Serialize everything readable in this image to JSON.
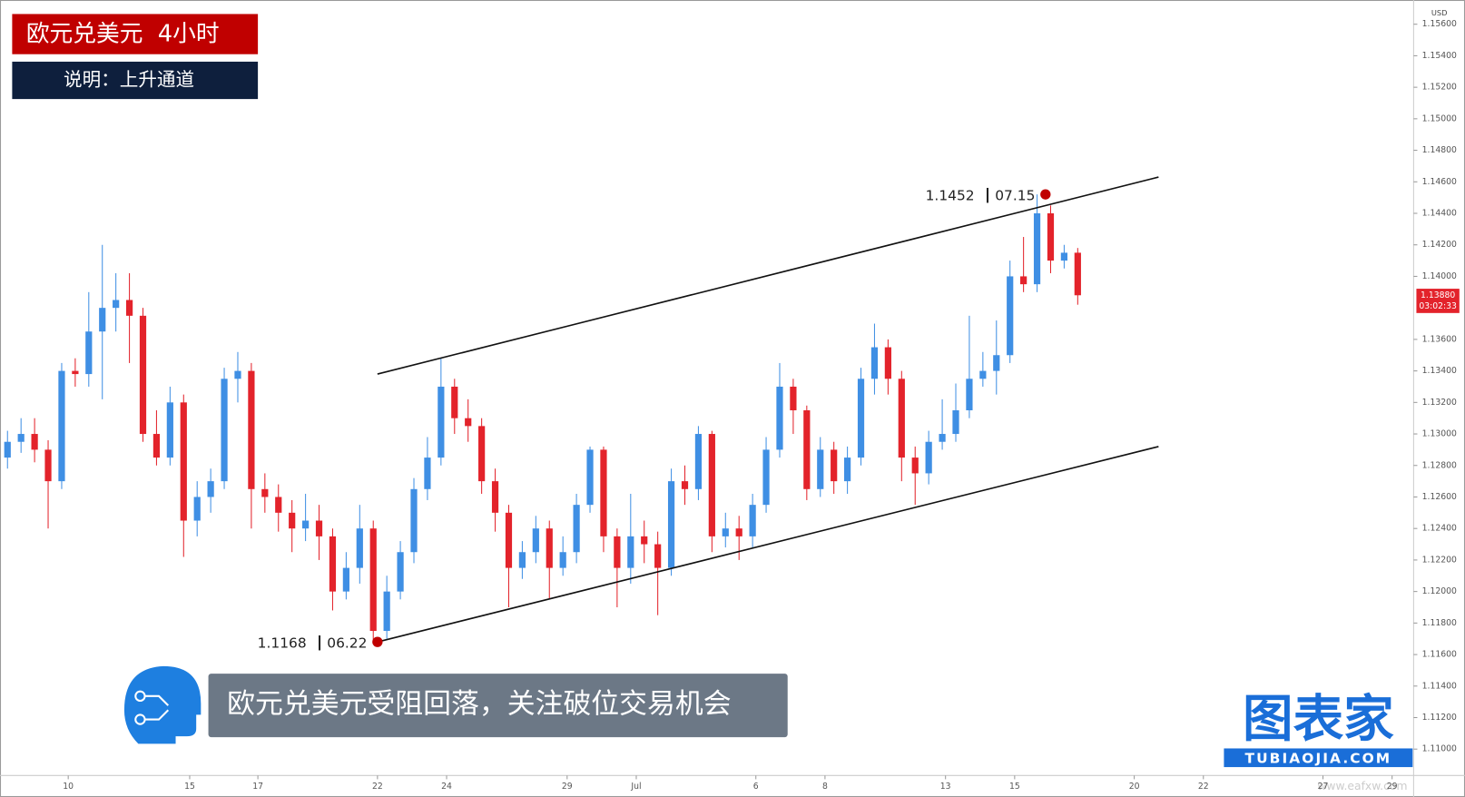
{
  "chart_data": {
    "type": "candlestick",
    "title": "欧元兑美元  4小时",
    "subtitle": "说明：上升通道",
    "caption": "欧元兑美元受阻回落，关注破位交易机会",
    "brand": "图表家",
    "brand_url": "TUBIAOJIA.COM",
    "watermark": "www.eafxw.com",
    "currency": "USD",
    "up_color": "#3f8fe4",
    "down_color": "#e3232b",
    "open": [
      1.1285,
      1.1295,
      1.13,
      1.129,
      1.127,
      1.134,
      1.1338,
      1.1365,
      1.138,
      1.1385,
      1.1375,
      1.13,
      1.1285,
      1.132,
      1.1245,
      1.126,
      1.127,
      1.1335,
      1.134,
      1.1265,
      1.126,
      1.125,
      1.124,
      1.1245,
      1.1235,
      1.12,
      1.1215,
      1.124,
      1.1175,
      1.12,
      1.1225,
      1.1265,
      1.1285,
      1.133,
      1.131,
      1.1305,
      1.127,
      1.125,
      1.1215,
      1.1225,
      1.124,
      1.1215,
      1.1225,
      1.1255,
      1.129,
      1.1235,
      1.1215,
      1.1235,
      1.123,
      1.1215,
      1.127,
      1.1265,
      1.13,
      1.1235,
      1.124,
      1.1235,
      1.1255,
      1.129,
      1.133,
      1.1315,
      1.1265,
      1.129,
      1.127,
      1.1285,
      1.1335,
      1.1355,
      1.1335,
      1.1285,
      1.1275,
      1.1295,
      1.13,
      1.1315,
      1.1335,
      1.134,
      1.135,
      1.14,
      1.1395,
      1.144,
      1.141,
      1.1415
    ],
    "high": [
      1.1302,
      1.131,
      1.131,
      1.1296,
      1.1345,
      1.1348,
      1.139,
      1.142,
      1.1402,
      1.1402,
      1.138,
      1.1315,
      1.133,
      1.1325,
      1.127,
      1.1278,
      1.1342,
      1.1352,
      1.1345,
      1.1275,
      1.1268,
      1.1258,
      1.1262,
      1.1255,
      1.124,
      1.1225,
      1.1255,
      1.1245,
      1.121,
      1.1232,
      1.1272,
      1.1298,
      1.1348,
      1.1335,
      1.1322,
      1.131,
      1.1278,
      1.1255,
      1.1232,
      1.1248,
      1.1245,
      1.1235,
      1.1262,
      1.1292,
      1.1292,
      1.124,
      1.1262,
      1.1245,
      1.1238,
      1.1278,
      1.128,
      1.1305,
      1.1302,
      1.125,
      1.1248,
      1.1262,
      1.1298,
      1.1345,
      1.1335,
      1.1318,
      1.1298,
      1.1295,
      1.1292,
      1.1342,
      1.137,
      1.136,
      1.134,
      1.1292,
      1.1302,
      1.1322,
      1.1332,
      1.1375,
      1.1352,
      1.1372,
      1.141,
      1.1425,
      1.1452,
      1.1445,
      1.142,
      1.1418
    ],
    "low": [
      1.1278,
      1.1288,
      1.1282,
      1.124,
      1.1265,
      1.133,
      1.133,
      1.1322,
      1.1365,
      1.1345,
      1.1295,
      1.128,
      1.128,
      1.1222,
      1.1235,
      1.125,
      1.1265,
      1.132,
      1.124,
      1.125,
      1.1238,
      1.1225,
      1.1232,
      1.122,
      1.1188,
      1.1195,
      1.1205,
      1.1168,
      1.117,
      1.1195,
      1.1218,
      1.1258,
      1.128,
      1.13,
      1.1295,
      1.1262,
      1.1238,
      1.119,
      1.1208,
      1.1218,
      1.1195,
      1.121,
      1.1218,
      1.125,
      1.1225,
      1.119,
      1.1205,
      1.1218,
      1.1185,
      1.121,
      1.1255,
      1.1258,
      1.1225,
      1.1228,
      1.122,
      1.1228,
      1.125,
      1.1285,
      1.13,
      1.1258,
      1.126,
      1.1262,
      1.1262,
      1.128,
      1.1325,
      1.1325,
      1.127,
      1.1255,
      1.1268,
      1.129,
      1.1295,
      1.131,
      1.133,
      1.1325,
      1.1345,
      1.139,
      1.139,
      1.1402,
      1.1405,
      1.1382
    ],
    "close": [
      1.1295,
      1.13,
      1.129,
      1.127,
      1.134,
      1.1338,
      1.1365,
      1.138,
      1.1385,
      1.1375,
      1.13,
      1.1285,
      1.132,
      1.1245,
      1.126,
      1.127,
      1.1335,
      1.134,
      1.1265,
      1.126,
      1.125,
      1.124,
      1.1245,
      1.1235,
      1.12,
      1.1215,
      1.124,
      1.1175,
      1.12,
      1.1225,
      1.1265,
      1.1285,
      1.133,
      1.131,
      1.1305,
      1.127,
      1.125,
      1.1215,
      1.1225,
      1.124,
      1.1215,
      1.1225,
      1.1255,
      1.129,
      1.1235,
      1.1215,
      1.1235,
      1.123,
      1.1215,
      1.127,
      1.1265,
      1.13,
      1.1235,
      1.124,
      1.1235,
      1.1255,
      1.129,
      1.133,
      1.1315,
      1.1265,
      1.129,
      1.127,
      1.1285,
      1.1335,
      1.1355,
      1.1335,
      1.1285,
      1.1275,
      1.1295,
      1.13,
      1.1315,
      1.1335,
      1.134,
      1.135,
      1.14,
      1.1395,
      1.144,
      1.141,
      1.1415,
      1.1388
    ],
    "x_labels": [
      "10",
      "15",
      "17",
      "22",
      "24",
      "29",
      "Jul",
      "6",
      "8",
      "13",
      "15",
      "20",
      "22",
      "27",
      "29"
    ],
    "ylim": [
      1.109,
      1.1565
    ],
    "yticks": [
      {
        "value": 1.156,
        "label": "1.15600"
      },
      {
        "value": 1.154,
        "label": "1.15400"
      },
      {
        "value": 1.152,
        "label": "1.15200"
      },
      {
        "value": 1.15,
        "label": "1.15000"
      },
      {
        "value": 1.148,
        "label": "1.14800"
      },
      {
        "value": 1.146,
        "label": "1.14600"
      },
      {
        "value": 1.144,
        "label": "1.14400"
      },
      {
        "value": 1.142,
        "label": "1.14200"
      },
      {
        "value": 1.14,
        "label": "1.14000"
      },
      {
        "value": 1.136,
        "label": "1.13600"
      },
      {
        "value": 1.134,
        "label": "1.13400"
      },
      {
        "value": 1.132,
        "label": "1.13200"
      },
      {
        "value": 1.13,
        "label": "1.13000"
      },
      {
        "value": 1.128,
        "label": "1.12800"
      },
      {
        "value": 1.126,
        "label": "1.12600"
      },
      {
        "value": 1.124,
        "label": "1.12400"
      },
      {
        "value": 1.122,
        "label": "1.12200"
      },
      {
        "value": 1.12,
        "label": "1.12000"
      },
      {
        "value": 1.118,
        "label": "1.11800"
      },
      {
        "value": 1.116,
        "label": "1.11600"
      },
      {
        "value": 1.114,
        "label": "1.11400"
      },
      {
        "value": 1.112,
        "label": "1.11200"
      },
      {
        "value": 1.11,
        "label": "1.11000"
      }
    ],
    "last_price": {
      "value": 1.1388,
      "label": "1.13880"
    },
    "countdown": "03:02:33",
    "channel_lines": [
      {
        "start": 1.1338,
        "end": 1.1463
      },
      {
        "start": 1.1168,
        "end": 1.1292
      }
    ],
    "annotations": [
      {
        "value": 1.1168,
        "date": "06.22"
      },
      {
        "value": 1.1452,
        "date": "07.15"
      }
    ]
  }
}
